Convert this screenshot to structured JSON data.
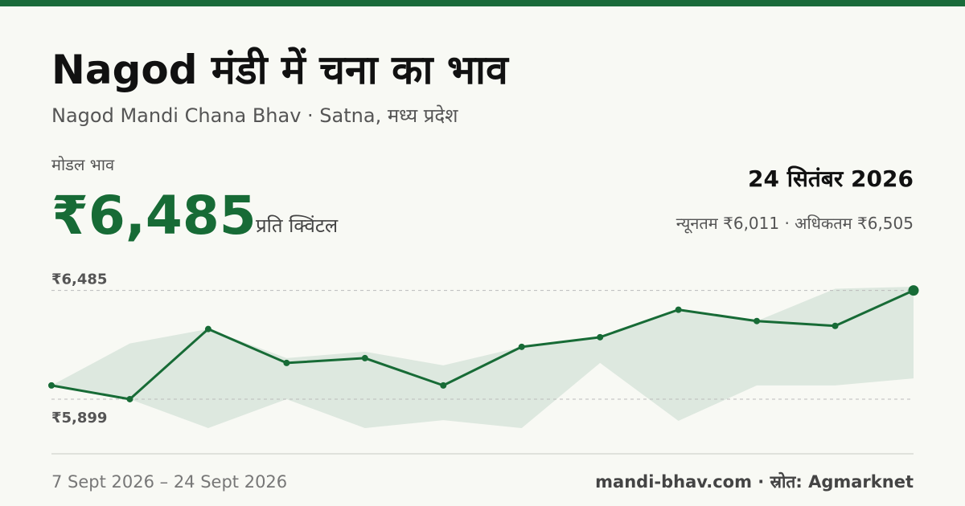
{
  "header": {
    "title": "Nagod मंडी में चना का भाव",
    "subtitle": "Nagod Mandi Chana Bhav · Satna, मध्य प्रदेश",
    "modal_label": "मोडल भाव",
    "modal_price": "₹6,485",
    "unit": "प्रति क्विंटल",
    "date": "24 सितंबर 2026",
    "min_max": "न्यूनतम ₹6,011 · अधिकतम ₹6,505"
  },
  "chart_data": {
    "type": "line",
    "values": [
      5973,
      5899,
      6277,
      6094,
      6120,
      5973,
      6181,
      6233,
      6381,
      6320,
      6294,
      6485
    ],
    "color": "#176b36",
    "band": {
      "max": [
        5973,
        6199,
        6277,
        6120,
        6155,
        6081,
        6181,
        6233,
        6381,
        6320,
        6494,
        6505
      ],
      "min": [
        5973,
        5899,
        5743,
        5899,
        5743,
        5786,
        5743,
        6094,
        5782,
        5973,
        5973,
        6011
      ],
      "color": "#dde8df"
    },
    "ylim": [
      5743,
      6505
    ],
    "yticks": [
      {
        "value": 6485,
        "label": "₹6,485"
      },
      {
        "value": 5899,
        "label": "₹5,899"
      }
    ],
    "grid": true
  },
  "footer": {
    "range": "7 Sept 2026 – 24 Sept 2026",
    "source": "mandi-bhav.com · स्रोत: Agmarknet"
  }
}
